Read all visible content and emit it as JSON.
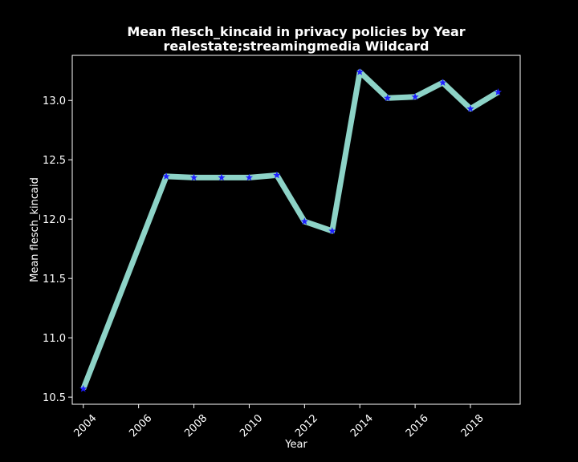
{
  "chart_data": {
    "type": "line",
    "title": "Mean flesch_kincaid in privacy policies by Year",
    "subtitle": "realestate;streamingmedia Wildcard",
    "xlabel": "Year",
    "ylabel": "Mean flesch_kincaid",
    "xlim": [
      2003.6,
      2019.8
    ],
    "ylim": [
      10.44,
      13.38
    ],
    "xticks": [
      2004,
      2006,
      2008,
      2010,
      2012,
      2014,
      2016,
      2018
    ],
    "yticks": [
      10.5,
      11.0,
      11.5,
      12.0,
      12.5,
      13.0
    ],
    "ytick_labels": [
      "10.5",
      "11.0",
      "11.5",
      "12.0",
      "12.5",
      "13.0"
    ],
    "grid": false,
    "legend": "none",
    "series": [
      {
        "x": [
          2004,
          2007,
          2008,
          2009,
          2010,
          2011,
          2012,
          2013,
          2014,
          2015,
          2016,
          2017,
          2018,
          2019
        ],
        "values": [
          10.57,
          12.36,
          12.35,
          12.35,
          12.35,
          12.37,
          11.98,
          11.9,
          13.24,
          13.02,
          13.03,
          13.15,
          12.93,
          13.07
        ],
        "line_color": "#8dd3c7",
        "marker_color": "#1f1fff",
        "marker": "star"
      }
    ]
  }
}
